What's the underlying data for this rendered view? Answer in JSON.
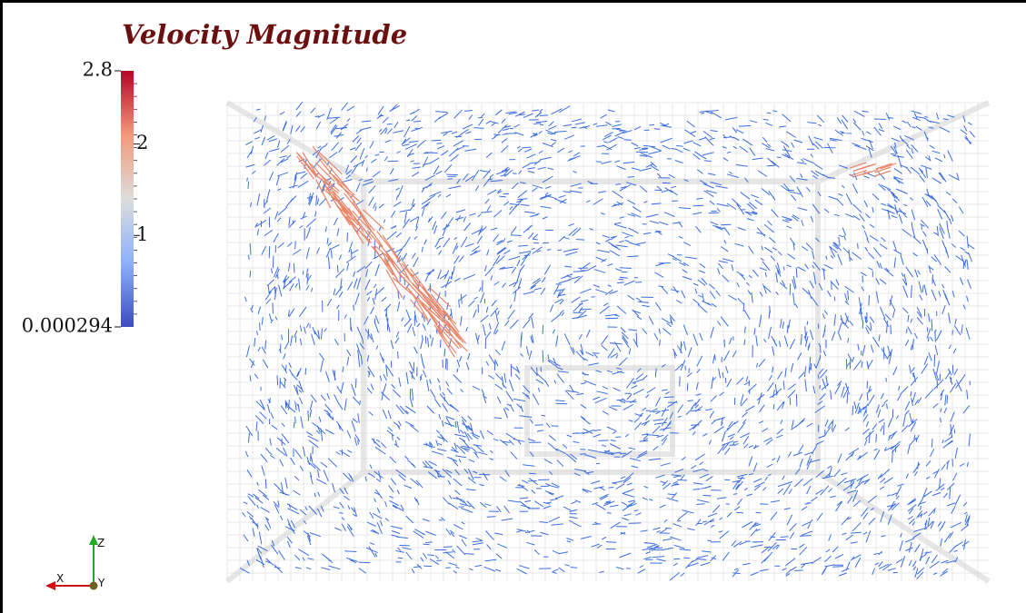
{
  "title": "Velocity Magnitude",
  "color_legend": {
    "range": [
      0.000294,
      2.8
    ],
    "ticks": [
      2,
      1
    ]
  },
  "orientation_axes": {
    "z": "Z",
    "x": "X",
    "y": "Y"
  }
}
